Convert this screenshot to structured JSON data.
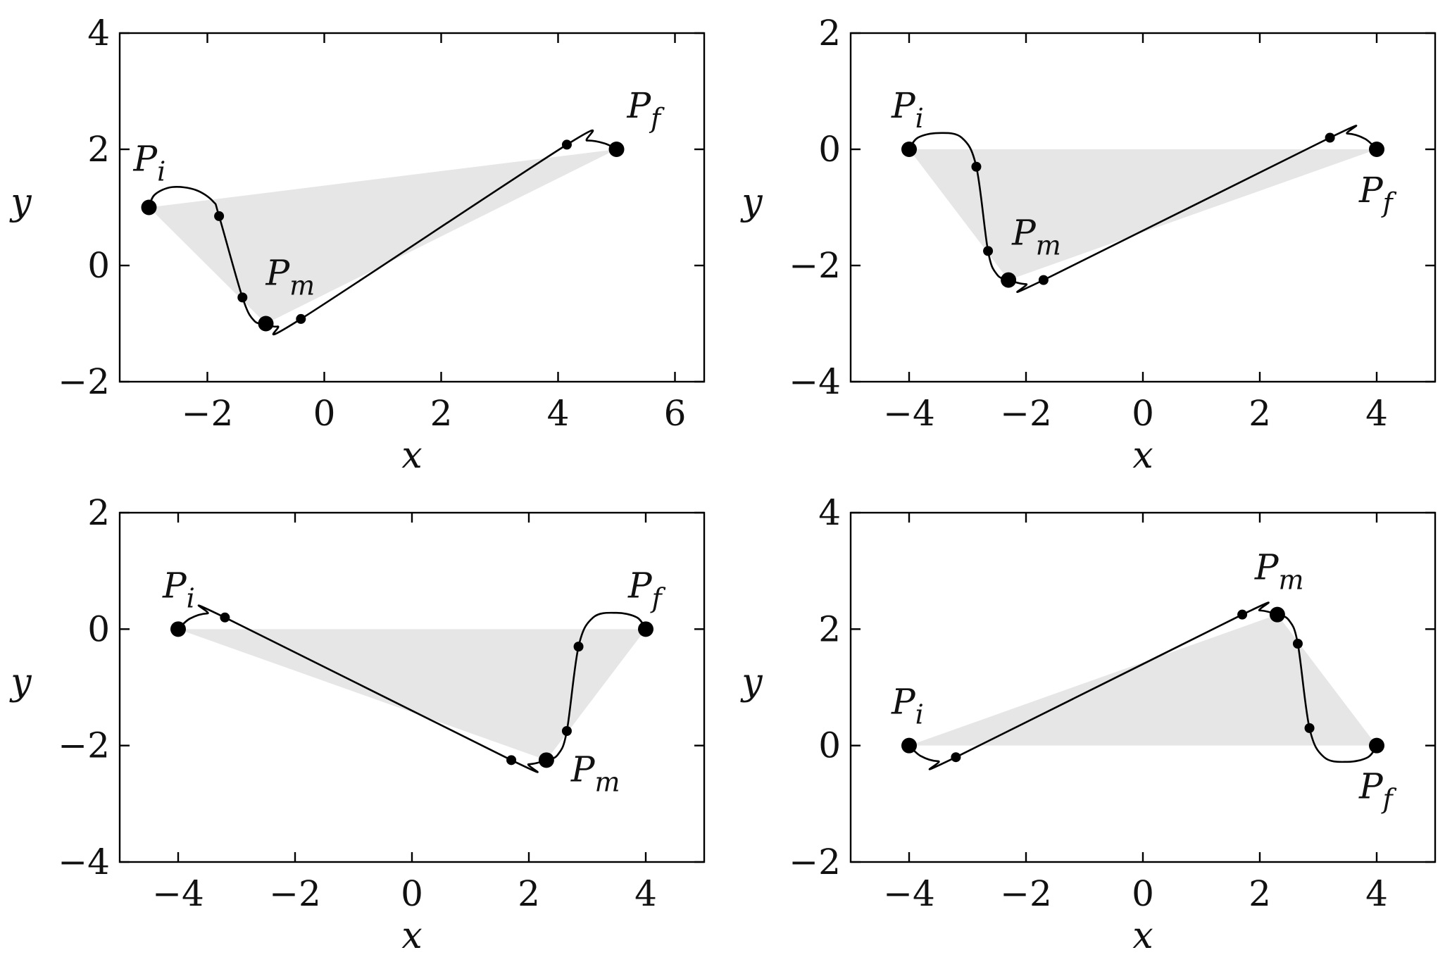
{
  "chart_data": [
    {
      "type": "line",
      "xlabel": "x",
      "ylabel": "y",
      "xlim": [
        -3.5,
        6.5
      ],
      "ylim": [
        -2,
        4
      ],
      "xticks": [
        -2,
        0,
        2,
        4,
        6
      ],
      "yticks": [
        -2,
        0,
        2,
        4
      ],
      "xtick_labels": [
        "−2",
        "0",
        "2",
        "4",
        "6"
      ],
      "ytick_labels": [
        "−2",
        "0",
        "2",
        "4"
      ],
      "triangle": [
        [
          -3,
          1
        ],
        [
          -1,
          -1
        ],
        [
          5,
          2
        ]
      ],
      "main_points": [
        {
          "label": "P",
          "sub": "i",
          "x": -3,
          "y": 1
        },
        {
          "label": "P",
          "sub": "m",
          "x": -1,
          "y": -1
        },
        {
          "label": "P",
          "sub": "f",
          "x": 5,
          "y": 2
        }
      ],
      "small_points": [
        [
          -1.8,
          0.85
        ],
        [
          -1.4,
          -0.55
        ],
        [
          -0.4,
          -0.92
        ],
        [
          4.15,
          2.08
        ]
      ],
      "path": [
        [
          -3,
          1
        ],
        [
          -2.9,
          1.22
        ],
        [
          -2.6,
          1.35
        ],
        [
          -2.2,
          1.3
        ],
        [
          -1.9,
          1.1
        ],
        [
          -1.8,
          0.85
        ],
        [
          -1.4,
          -0.55
        ],
        [
          -1.2,
          -0.95
        ],
        [
          -1.0,
          -1.0
        ],
        [
          -0.8,
          -1.05
        ],
        [
          -0.4,
          -0.92
        ],
        [
          4.15,
          2.08
        ],
        [
          4.5,
          2.15
        ],
        [
          4.8,
          2.1
        ],
        [
          5,
          2
        ]
      ]
    },
    {
      "type": "line",
      "xlabel": "x",
      "ylabel": "y",
      "xlim": [
        -5,
        5
      ],
      "ylim": [
        -4,
        2
      ],
      "xticks": [
        -4,
        -2,
        0,
        2,
        4
      ],
      "yticks": [
        -4,
        -2,
        0,
        2
      ],
      "xtick_labels": [
        "−4",
        "−2",
        "0",
        "2",
        "4"
      ],
      "ytick_labels": [
        "−4",
        "−2",
        "0",
        "2"
      ],
      "triangle": [
        [
          -4,
          0
        ],
        [
          -2.3,
          -2.25
        ],
        [
          4,
          0
        ]
      ],
      "main_points": [
        {
          "label": "P",
          "sub": "i",
          "x": -4,
          "y": 0
        },
        {
          "label": "P",
          "sub": "m",
          "x": -2.3,
          "y": -2.25
        },
        {
          "label": "P",
          "sub": "f",
          "x": 4,
          "y": 0
        }
      ],
      "small_points": [
        [
          -2.85,
          -0.3
        ],
        [
          -2.65,
          -1.75
        ],
        [
          -1.7,
          -2.25
        ],
        [
          3.2,
          0.2
        ]
      ],
      "path": [
        [
          -4,
          0
        ],
        [
          -3.85,
          0.2
        ],
        [
          -3.5,
          0.28
        ],
        [
          -3.1,
          0.2
        ],
        [
          -2.85,
          -0.3
        ],
        [
          -2.65,
          -1.75
        ],
        [
          -2.5,
          -2.15
        ],
        [
          -2.3,
          -2.25
        ],
        [
          -2.0,
          -2.32
        ],
        [
          -1.7,
          -2.25
        ],
        [
          3.2,
          0.2
        ],
        [
          3.5,
          0.27
        ],
        [
          3.8,
          0.18
        ],
        [
          4,
          0
        ]
      ]
    },
    {
      "type": "line",
      "xlabel": "x",
      "ylabel": "y",
      "xlim": [
        -5,
        5
      ],
      "ylim": [
        -4,
        2
      ],
      "xticks": [
        -4,
        -2,
        0,
        2,
        4
      ],
      "yticks": [
        -4,
        -2,
        0,
        2
      ],
      "xtick_labels": [
        "−4",
        "−2",
        "0",
        "2",
        "4"
      ],
      "ytick_labels": [
        "−4",
        "−2",
        "0",
        "2"
      ],
      "triangle": [
        [
          -4,
          0
        ],
        [
          2.3,
          -2.25
        ],
        [
          4,
          0
        ]
      ],
      "main_points": [
        {
          "label": "P",
          "sub": "i",
          "x": -4,
          "y": 0
        },
        {
          "label": "P",
          "sub": "m",
          "x": 2.3,
          "y": -2.25
        },
        {
          "label": "P",
          "sub": "f",
          "x": 4,
          "y": 0
        }
      ],
      "small_points": [
        [
          -3.2,
          0.2
        ],
        [
          1.7,
          -2.25
        ],
        [
          2.65,
          -1.75
        ],
        [
          2.85,
          -0.3
        ]
      ],
      "path": [
        [
          -4,
          0
        ],
        [
          -3.8,
          0.18
        ],
        [
          -3.5,
          0.27
        ],
        [
          -3.2,
          0.2
        ],
        [
          1.7,
          -2.25
        ],
        [
          2.0,
          -2.32
        ],
        [
          2.3,
          -2.25
        ],
        [
          2.5,
          -2.15
        ],
        [
          2.65,
          -1.75
        ],
        [
          2.85,
          -0.3
        ],
        [
          3.1,
          0.2
        ],
        [
          3.5,
          0.28
        ],
        [
          3.85,
          0.2
        ],
        [
          4,
          0
        ]
      ]
    },
    {
      "type": "line",
      "xlabel": "x",
      "ylabel": "y",
      "xlim": [
        -5,
        5
      ],
      "ylim": [
        -2,
        4
      ],
      "xticks": [
        -4,
        -2,
        0,
        2,
        4
      ],
      "yticks": [
        -2,
        0,
        2,
        4
      ],
      "xtick_labels": [
        "−4",
        "−2",
        "0",
        "2",
        "4"
      ],
      "ytick_labels": [
        "−2",
        "0",
        "2",
        "4"
      ],
      "triangle": [
        [
          -4,
          0
        ],
        [
          2.3,
          2.25
        ],
        [
          4,
          0
        ]
      ],
      "main_points": [
        {
          "label": "P",
          "sub": "i",
          "x": -4,
          "y": 0
        },
        {
          "label": "P",
          "sub": "m",
          "x": 2.3,
          "y": 2.25
        },
        {
          "label": "P",
          "sub": "f",
          "x": 4,
          "y": 0
        }
      ],
      "small_points": [
        [
          -3.2,
          -0.2
        ],
        [
          1.7,
          2.25
        ],
        [
          2.65,
          1.75
        ],
        [
          2.85,
          0.3
        ]
      ],
      "path": [
        [
          -4,
          0
        ],
        [
          -3.8,
          -0.18
        ],
        [
          -3.5,
          -0.27
        ],
        [
          -3.2,
          -0.2
        ],
        [
          1.7,
          2.25
        ],
        [
          2.0,
          2.32
        ],
        [
          2.3,
          2.25
        ],
        [
          2.5,
          2.15
        ],
        [
          2.65,
          1.75
        ],
        [
          2.85,
          0.3
        ],
        [
          3.1,
          -0.2
        ],
        [
          3.5,
          -0.28
        ],
        [
          3.85,
          -0.2
        ],
        [
          4,
          0
        ]
      ]
    }
  ]
}
